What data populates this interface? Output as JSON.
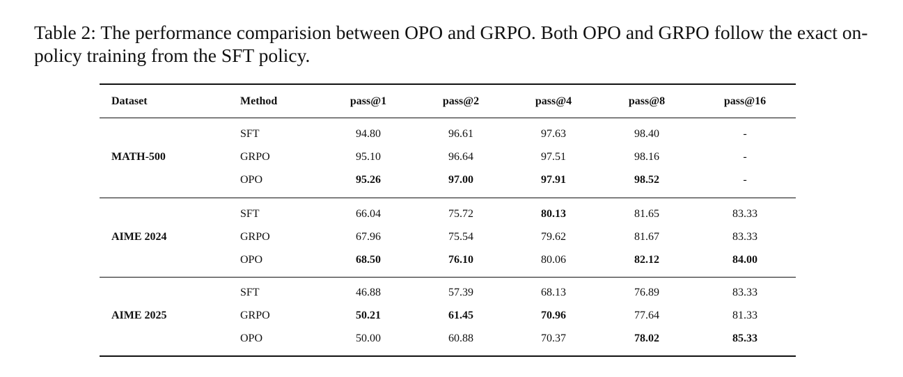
{
  "caption": "Table 2: The performance comparision between OPO and GRPO. Both OPO and GRPO follow the exact on-policy training from the SFT policy.",
  "table": {
    "headers": [
      "Dataset",
      "Method",
      "pass@1",
      "pass@2",
      "pass@4",
      "pass@8",
      "pass@16"
    ],
    "groups": [
      {
        "dataset": "MATH-500",
        "rows": [
          {
            "method": "SFT",
            "values": [
              "94.80",
              "96.61",
              "97.63",
              "98.40",
              "-"
            ],
            "bold": [
              false,
              false,
              false,
              false,
              false
            ]
          },
          {
            "method": "GRPO",
            "values": [
              "95.10",
              "96.64",
              "97.51",
              "98.16",
              "-"
            ],
            "bold": [
              false,
              false,
              false,
              false,
              false
            ]
          },
          {
            "method": "OPO",
            "values": [
              "95.26",
              "97.00",
              "97.91",
              "98.52",
              "-"
            ],
            "bold": [
              true,
              true,
              true,
              true,
              false
            ]
          }
        ]
      },
      {
        "dataset": "AIME 2024",
        "rows": [
          {
            "method": "SFT",
            "values": [
              "66.04",
              "75.72",
              "80.13",
              "81.65",
              "83.33"
            ],
            "bold": [
              false,
              false,
              true,
              false,
              false
            ]
          },
          {
            "method": "GRPO",
            "values": [
              "67.96",
              "75.54",
              "79.62",
              "81.67",
              "83.33"
            ],
            "bold": [
              false,
              false,
              false,
              false,
              false
            ]
          },
          {
            "method": "OPO",
            "values": [
              "68.50",
              "76.10",
              "80.06",
              "82.12",
              "84.00"
            ],
            "bold": [
              true,
              true,
              false,
              true,
              true
            ]
          }
        ]
      },
      {
        "dataset": "AIME 2025",
        "rows": [
          {
            "method": "SFT",
            "values": [
              "46.88",
              "57.39",
              "68.13",
              "76.89",
              "83.33"
            ],
            "bold": [
              false,
              false,
              false,
              false,
              false
            ]
          },
          {
            "method": "GRPO",
            "values": [
              "50.21",
              "61.45",
              "70.96",
              "77.64",
              "81.33"
            ],
            "bold": [
              true,
              true,
              true,
              false,
              false
            ]
          },
          {
            "method": "OPO",
            "values": [
              "50.00",
              "60.88",
              "70.37",
              "78.02",
              "85.33"
            ],
            "bold": [
              false,
              false,
              false,
              true,
              true
            ]
          }
        ]
      }
    ]
  }
}
